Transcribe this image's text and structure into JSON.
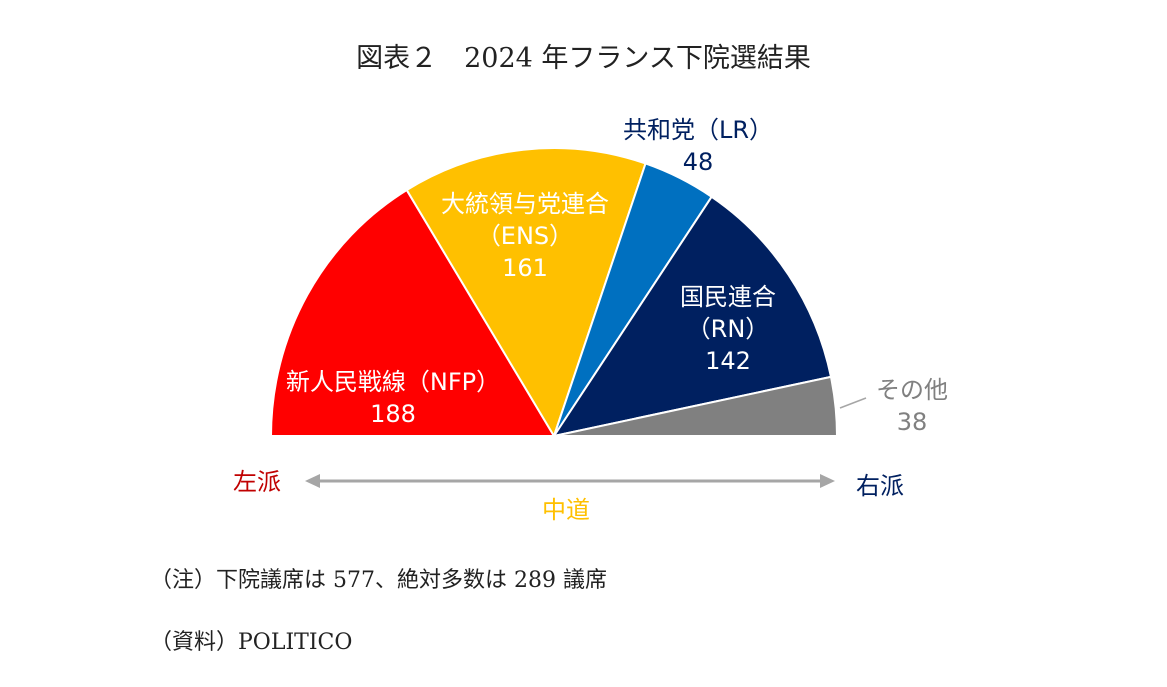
{
  "title": "図表２　2024 年フランス下院選結果",
  "chart_data": {
    "type": "pie",
    "style": "half-donut parliament chart",
    "title": "図表２　2024 年フランス下院選結果",
    "total": 577,
    "series": [
      {
        "lines": [
          "新人民戦線（NFP）",
          "188"
        ],
        "value": 188,
        "color": "#ff0000",
        "text_color": "#ffffff"
      },
      {
        "lines": [
          "大統領与党連合",
          "（ENS）",
          "161"
        ],
        "value": 161,
        "color": "#ffc000",
        "text_color": "#ffffff"
      },
      {
        "lines": [
          "共和党（LR）",
          "48"
        ],
        "value": 48,
        "color": "#0070c0",
        "text_color": "#002060"
      },
      {
        "lines": [
          "国民連合",
          "（RN）",
          "142"
        ],
        "value": 142,
        "color": "#002060",
        "text_color": "#ffffff"
      },
      {
        "lines": [
          "その他",
          "38"
        ],
        "value": 38,
        "color": "#808080",
        "text_color": "#808080"
      }
    ],
    "axis": {
      "left": {
        "text": "左派",
        "color": "#c00000"
      },
      "center": {
        "text": "中道",
        "color": "#ffc000"
      },
      "right": {
        "text": "右派",
        "color": "#002060"
      }
    }
  },
  "note": "（注）下院議席は 577、絶対多数は 289 議席",
  "source": "（資料）POLITICO"
}
